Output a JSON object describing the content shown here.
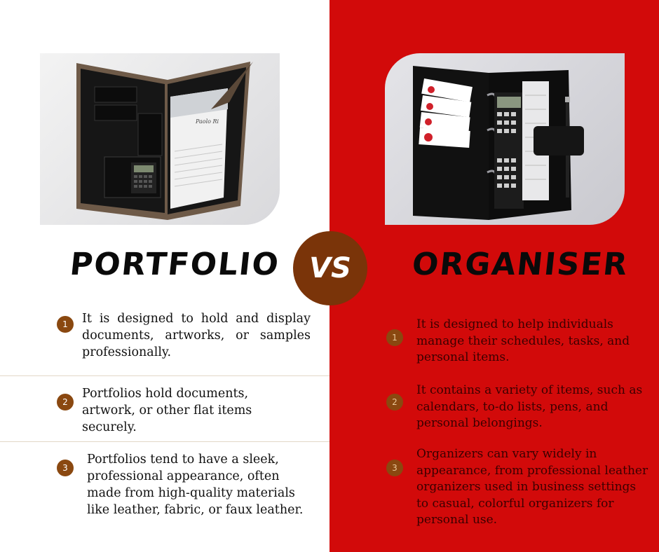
{
  "left": {
    "heading": "PORTFOLIO",
    "points": [
      {
        "number": "1",
        "text": "It is designed to hold and display documents, artworks, or samples professionally."
      },
      {
        "number": "2",
        "text": "Portfolios hold documents, artwork, or other flat items securely."
      },
      {
        "number": "3",
        "text": "Portfolios tend to have a sleek, professional appearance, often made from high-quality materials like leather, fabric, or faux leather."
      }
    ],
    "photo_brand": "Paolo Ri"
  },
  "right": {
    "heading": "ORGANISER",
    "points": [
      {
        "number": "1",
        "text": " It is designed to help individuals manage their schedules, tasks, and personal items."
      },
      {
        "number": "2",
        "text": "It contains a variety of items, such as calendars, to-do lists, pens, and personal belongings."
      },
      {
        "number": "3",
        "text": "Organizers can vary widely in appearance, from professional leather organizers used in business settings to casual, colorful organizers for personal use."
      }
    ]
  },
  "vs_label": "VS",
  "colors": {
    "right_background": "#d20a0a",
    "badge": "#7a3409",
    "number_badge": "#8a4810",
    "divider": "#e2d7c7"
  }
}
